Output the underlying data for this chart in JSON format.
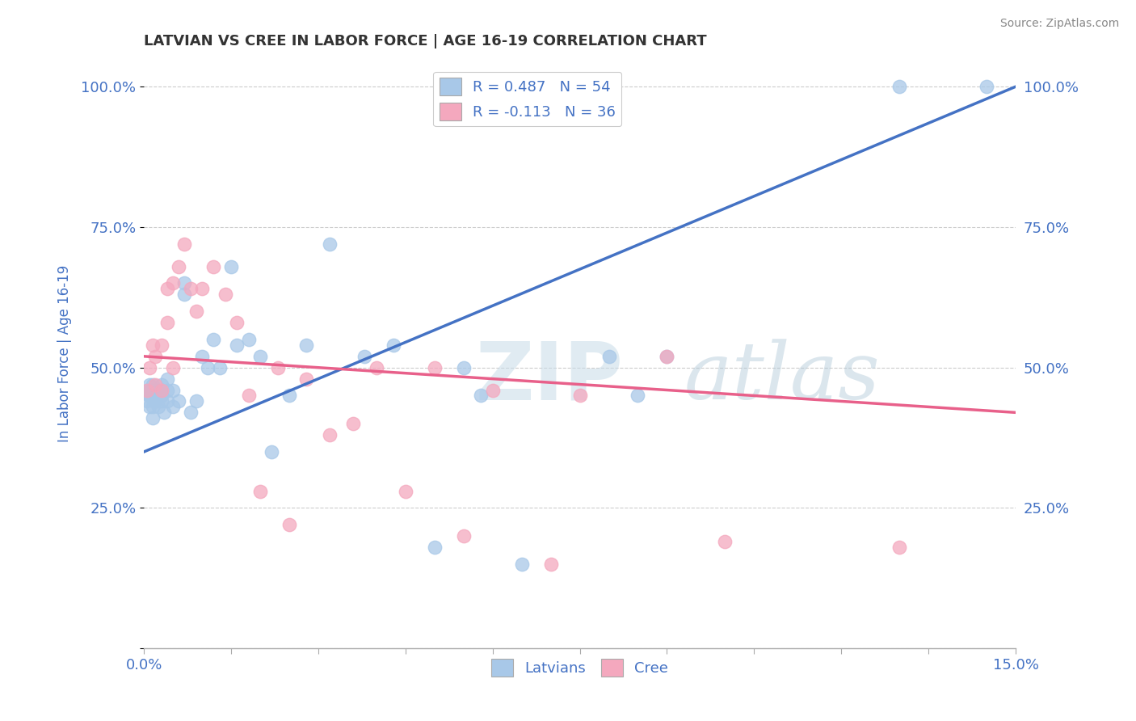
{
  "title": "LATVIAN VS CREE IN LABOR FORCE | AGE 16-19 CORRELATION CHART",
  "xlabel": "",
  "ylabel": "In Labor Force | Age 16-19",
  "source": "Source: ZipAtlas.com",
  "xlim": [
    0.0,
    0.15
  ],
  "ylim": [
    0.0,
    1.05
  ],
  "xticks": [
    0.0,
    0.015,
    0.03,
    0.045,
    0.06,
    0.075,
    0.09,
    0.105,
    0.12,
    0.135,
    0.15
  ],
  "xtick_labels": [
    "0.0%",
    "",
    "",
    "",
    "",
    "",
    "",
    "",
    "",
    "",
    "15.0%"
  ],
  "yticks": [
    0.0,
    0.25,
    0.5,
    0.75,
    1.0
  ],
  "ytick_labels": [
    "",
    "25.0%",
    "50.0%",
    "75.0%",
    "100.0%"
  ],
  "latvian_color": "#a8c8e8",
  "cree_color": "#f4a8be",
  "latvian_line_color": "#4472c4",
  "cree_line_color": "#e8608a",
  "R_latvian": 0.487,
  "N_latvian": 54,
  "R_cree": -0.113,
  "N_cree": 36,
  "latvian_scatter_x": [
    0.0005,
    0.0005,
    0.0008,
    0.001,
    0.001,
    0.001,
    0.0012,
    0.0015,
    0.0015,
    0.0015,
    0.002,
    0.002,
    0.002,
    0.002,
    0.0025,
    0.0025,
    0.003,
    0.003,
    0.003,
    0.003,
    0.0035,
    0.004,
    0.004,
    0.004,
    0.005,
    0.005,
    0.006,
    0.007,
    0.007,
    0.008,
    0.009,
    0.01,
    0.011,
    0.012,
    0.013,
    0.015,
    0.016,
    0.018,
    0.02,
    0.022,
    0.025,
    0.028,
    0.032,
    0.038,
    0.043,
    0.05,
    0.055,
    0.058,
    0.065,
    0.08,
    0.085,
    0.09,
    0.13,
    0.145
  ],
  "latvian_scatter_y": [
    0.44,
    0.46,
    0.45,
    0.43,
    0.45,
    0.47,
    0.46,
    0.41,
    0.43,
    0.47,
    0.44,
    0.46,
    0.44,
    0.46,
    0.43,
    0.46,
    0.44,
    0.45,
    0.46,
    0.47,
    0.42,
    0.44,
    0.46,
    0.48,
    0.43,
    0.46,
    0.44,
    0.63,
    0.65,
    0.42,
    0.44,
    0.52,
    0.5,
    0.55,
    0.5,
    0.68,
    0.54,
    0.55,
    0.52,
    0.35,
    0.45,
    0.54,
    0.72,
    0.52,
    0.54,
    0.18,
    0.5,
    0.45,
    0.15,
    0.52,
    0.45,
    0.52,
    1.0,
    1.0
  ],
  "cree_scatter_x": [
    0.0005,
    0.001,
    0.0015,
    0.002,
    0.002,
    0.003,
    0.003,
    0.004,
    0.004,
    0.005,
    0.005,
    0.006,
    0.007,
    0.008,
    0.009,
    0.01,
    0.012,
    0.014,
    0.016,
    0.018,
    0.02,
    0.023,
    0.025,
    0.028,
    0.032,
    0.036,
    0.04,
    0.045,
    0.05,
    0.055,
    0.06,
    0.07,
    0.075,
    0.09,
    0.1,
    0.13
  ],
  "cree_scatter_y": [
    0.46,
    0.5,
    0.54,
    0.47,
    0.52,
    0.46,
    0.54,
    0.58,
    0.64,
    0.5,
    0.65,
    0.68,
    0.72,
    0.64,
    0.6,
    0.64,
    0.68,
    0.63,
    0.58,
    0.45,
    0.28,
    0.5,
    0.22,
    0.48,
    0.38,
    0.4,
    0.5,
    0.28,
    0.5,
    0.2,
    0.46,
    0.15,
    0.45,
    0.52,
    0.19,
    0.18
  ],
  "background_color": "#ffffff",
  "grid_color": "#cccccc",
  "title_color": "#333333",
  "axis_label_color": "#4472c4",
  "tick_label_color": "#4472c4",
  "watermark_zip_color": "#c8dce8",
  "watermark_atlas_color": "#b0c8d8",
  "watermark_alpha": 0.6
}
